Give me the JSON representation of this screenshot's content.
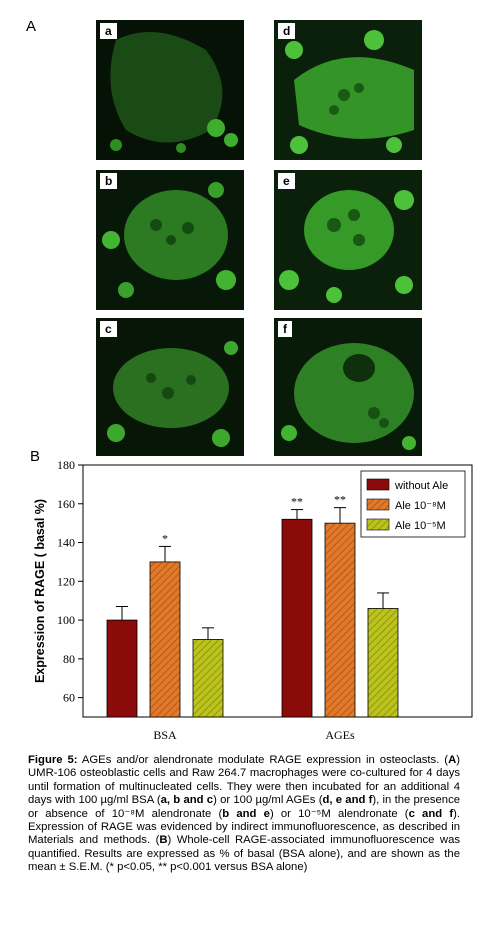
{
  "figure": {
    "panel_a_letter": "A",
    "panel_b_letter": "B",
    "micro_labels": [
      "a",
      "b",
      "c",
      "d",
      "e",
      "f"
    ]
  },
  "chart_data": {
    "type": "bar",
    "categories": [
      "BSA",
      "AGEs"
    ],
    "ylabel": "Expression of RAGE ( basal %)",
    "ylim": [
      50,
      180
    ],
    "yticks": [
      60,
      80,
      100,
      120,
      140,
      160,
      180
    ],
    "grid": false,
    "legend_placement": "top-right",
    "series": [
      {
        "name": "without Ale",
        "values": [
          100,
          152
        ],
        "errors": [
          7,
          5
        ],
        "sig": [
          "",
          "**"
        ],
        "color": "#8b0a0a"
      },
      {
        "name": "Ale 10⁻⁸M",
        "values": [
          130,
          150
        ],
        "errors": [
          8,
          8
        ],
        "sig": [
          "*",
          "**"
        ],
        "color": "#e07a2a"
      },
      {
        "name": "Ale 10⁻⁵M",
        "values": [
          90,
          106
        ],
        "errors": [
          6,
          8
        ],
        "sig": [
          "",
          ""
        ],
        "color": "#bcc41c"
      }
    ]
  },
  "caption": {
    "bold_lead": "Figure 5:",
    "lead": " AGEs and/or alendronate modulate RAGE expression in osteoclasts. (",
    "A_bold": "A",
    "part_a": ") UMR-106 osteoblastic cells and Raw 264.7 macrophages were co-cultured for 4 days until formation of multinucleated cells. They were then incubated for an additional 4 days with 100 µg/ml BSA (",
    "abc": "a, b and c",
    "part_b": ") or 100 µg/ml AGEs (",
    "def": "d, e and f",
    "part_c": "), in the presence or absence of 10⁻⁸M alendronate (",
    "be": "b and e",
    "part_d": ") or 10⁻⁵M alendronate (",
    "cf": "c and f",
    "part_e": "). Expression of RAGE was evidenced by indirect immunofluorescence, as described in Materials and methods. (",
    "B_bold": "B",
    "part_f": ") Whole-cell RAGE-associated immunofluorescence was quantified. Results are expressed as % of basal (BSA alone), and are shown as the mean ± S.E.M. (* p<0.05, ** p<0.001 versus BSA alone)"
  }
}
